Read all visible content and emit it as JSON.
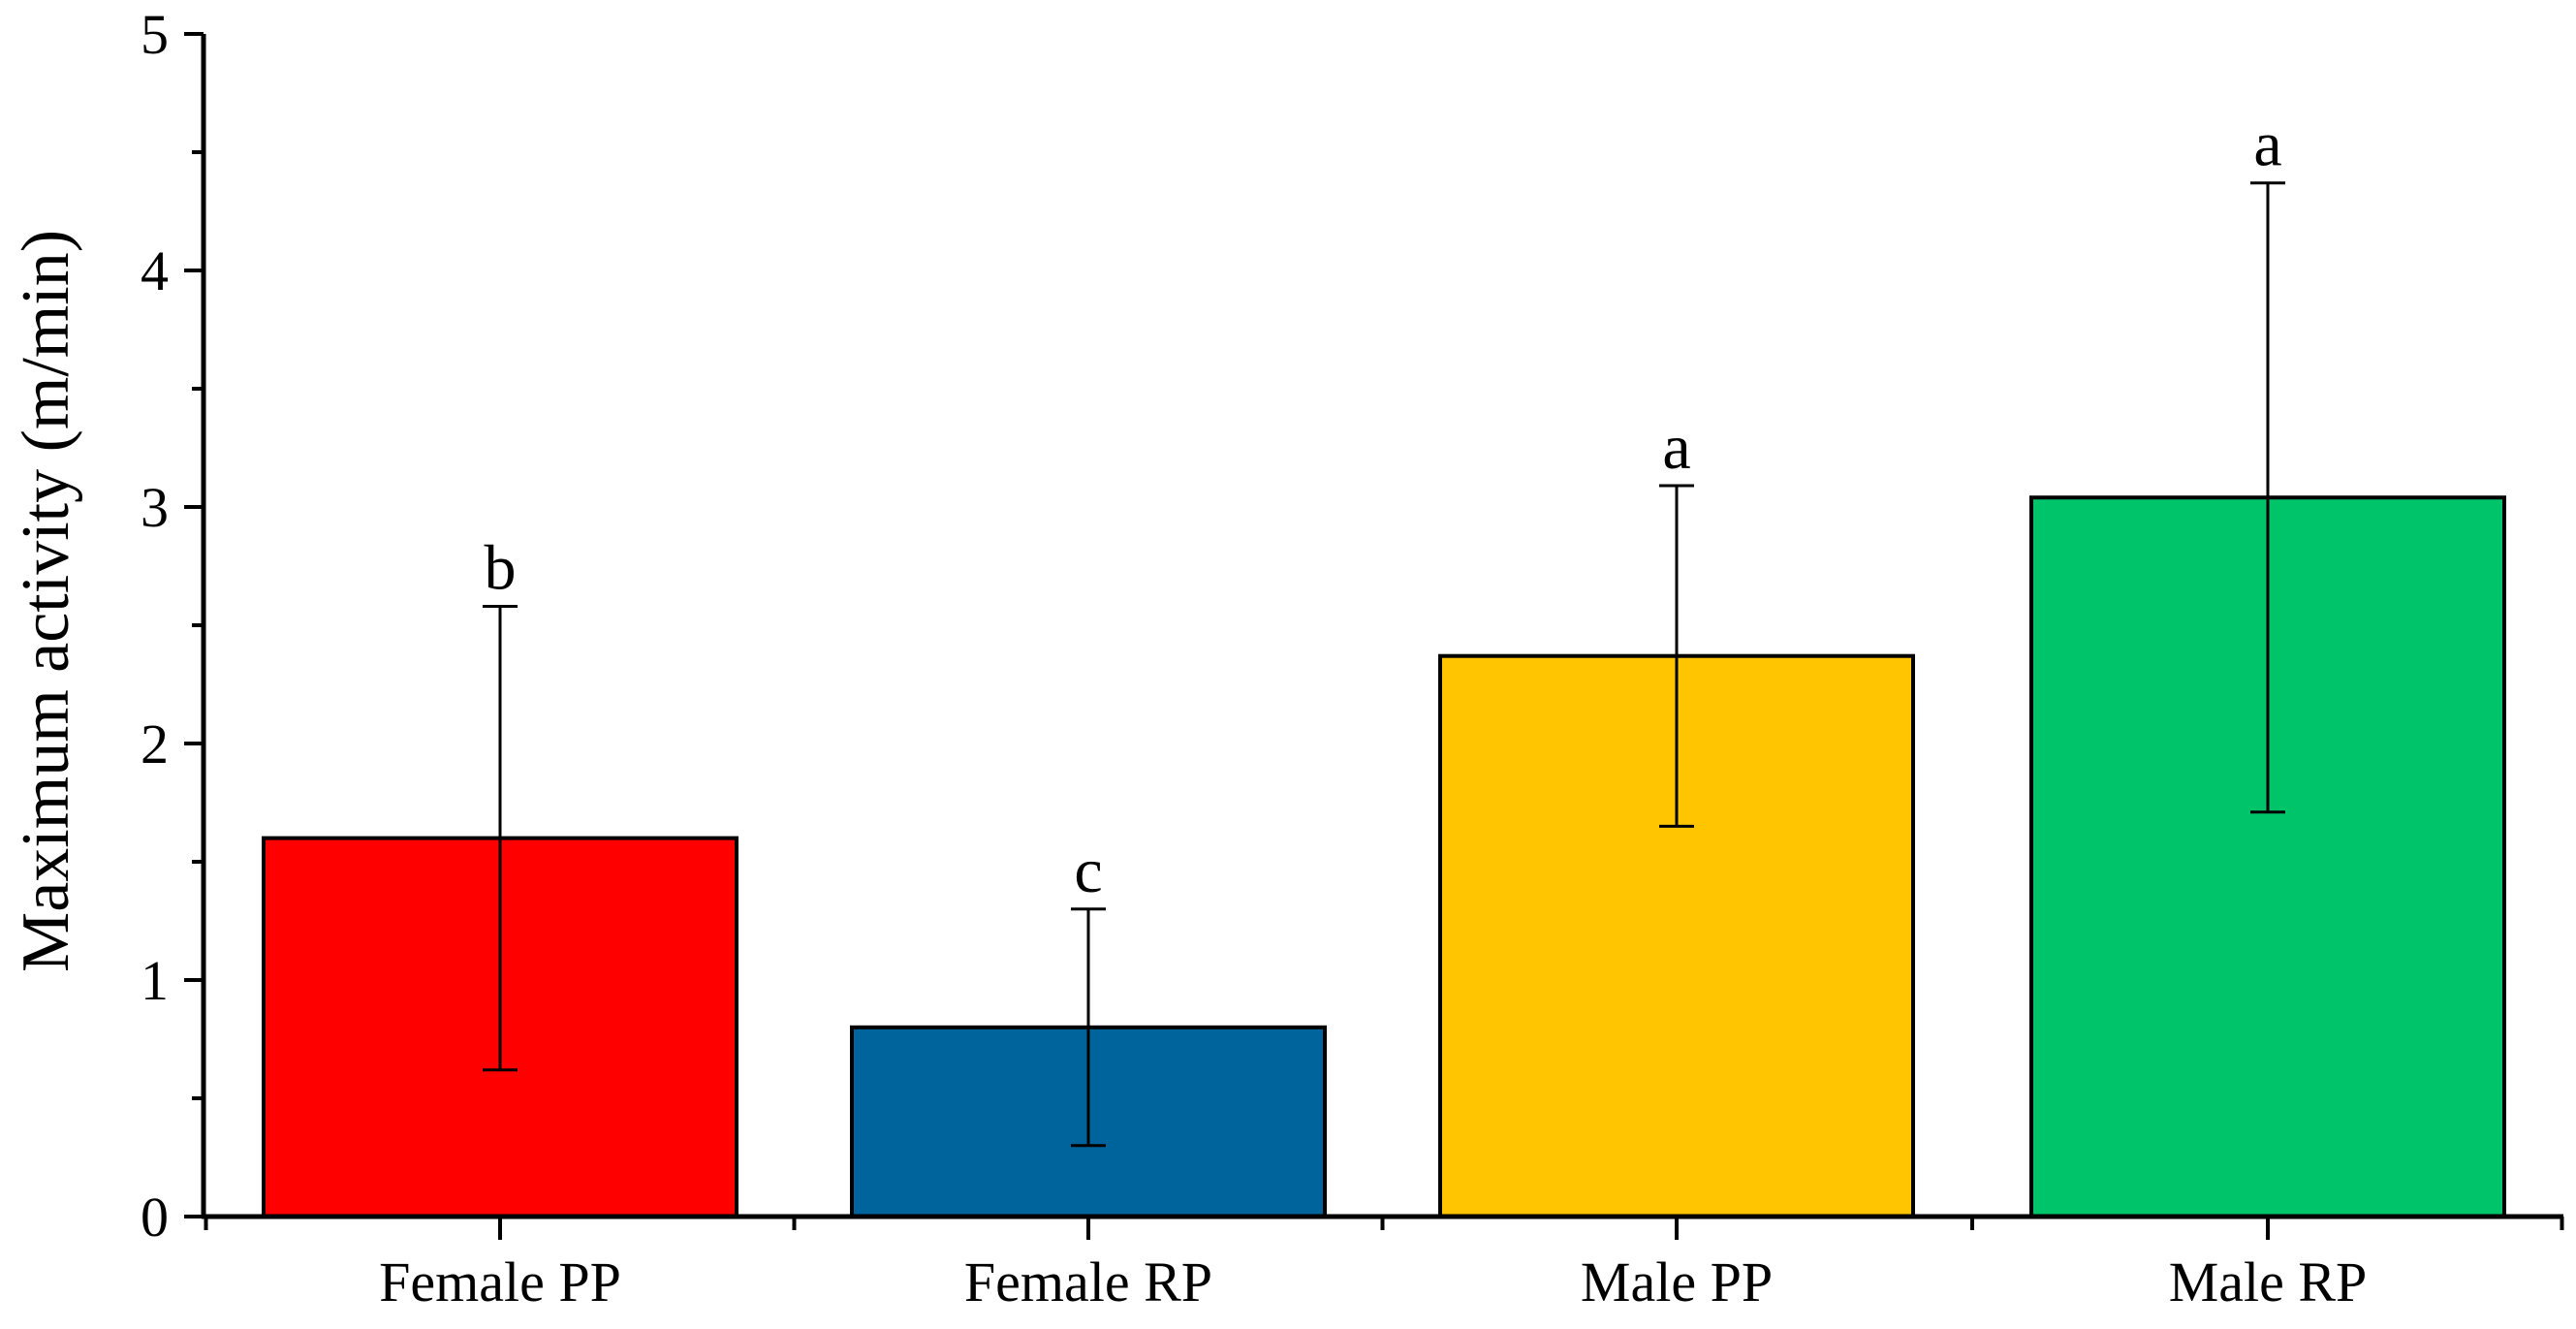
{
  "chart_data": {
    "type": "bar",
    "title": "",
    "xlabel": "",
    "ylabel": "Maximum activity (m/min)",
    "ylim": [
      0,
      5
    ],
    "yticks": [
      0,
      1,
      2,
      3,
      4,
      5
    ],
    "categories": [
      "Female PP",
      "Female RP",
      "Male PP",
      "Male RP"
    ],
    "values": [
      1.6,
      0.8,
      2.37,
      3.04
    ],
    "errors": [
      0.98,
      0.5,
      0.72,
      1.33
    ],
    "significance": [
      "b",
      "c",
      "a",
      "a"
    ],
    "colors": [
      "#ff0000",
      "#00649c",
      "#ffc500",
      "#00c46a"
    ],
    "grid": false,
    "legend": "none"
  }
}
